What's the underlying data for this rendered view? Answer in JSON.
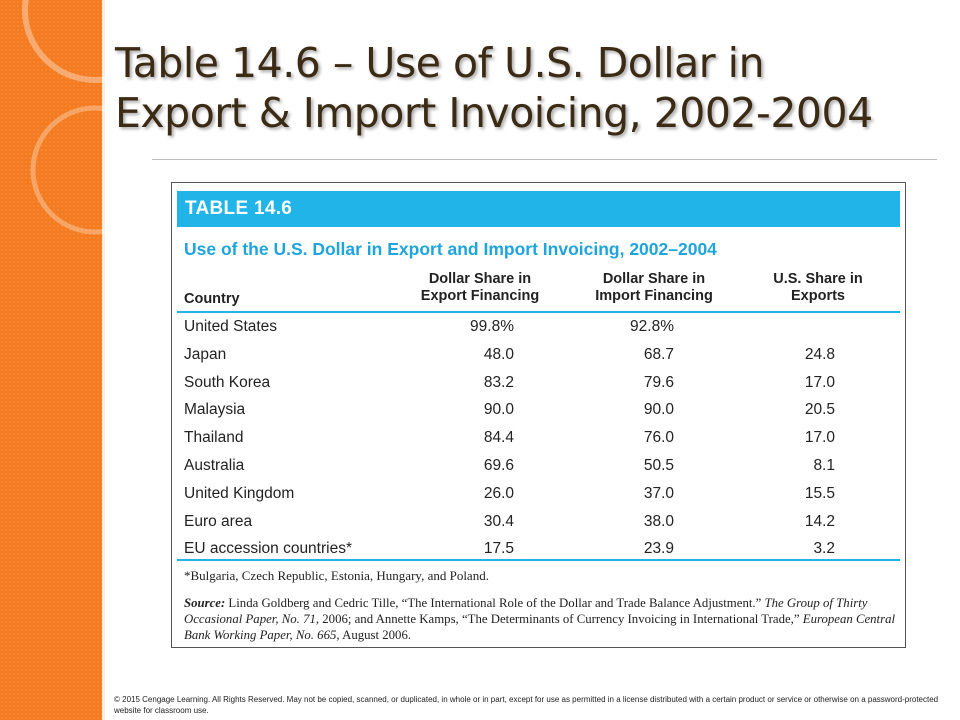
{
  "slide": {
    "title_line1": "Table 14.6 – Use of U.S. Dollar in",
    "title_line2": "Export & Import Invoicing, 2002-2004",
    "accent_color": "#f47b20",
    "copyright": "© 2015 Cengage Learning. All Rights Reserved. May not be copied, scanned, or duplicated, in whole or in part, except for use as permitted in a license distributed with a certain product or service or otherwise on a password-protected website for classroom use."
  },
  "table": {
    "label": "TABLE 14.6",
    "caption": "Use of the U.S. Dollar in Export and Import Invoicing, 2002–2004",
    "header_color": "#20b4e8",
    "columns": {
      "country": "Country",
      "export_line1": "Dollar Share in",
      "export_line2": "Export Financing",
      "import_line1": "Dollar Share in",
      "import_line2": "Import Financing",
      "us_line1": "U.S. Share in",
      "us_line2": "Exports"
    },
    "rows": [
      {
        "country": "United States",
        "export": "99.8%",
        "import": "92.8%",
        "us_share": ""
      },
      {
        "country": "Japan",
        "export": "48.0",
        "import": "68.7",
        "us_share": "24.8"
      },
      {
        "country": "South Korea",
        "export": "83.2",
        "import": "79.6",
        "us_share": "17.0"
      },
      {
        "country": "Malaysia",
        "export": "90.0",
        "import": "90.0",
        "us_share": "20.5"
      },
      {
        "country": "Thailand",
        "export": "84.4",
        "import": "76.0",
        "us_share": "17.0"
      },
      {
        "country": "Australia",
        "export": "69.6",
        "import": "50.5",
        "us_share": "8.1"
      },
      {
        "country": "United Kingdom",
        "export": "26.0",
        "import": "37.0",
        "us_share": "15.5"
      },
      {
        "country": "Euro area",
        "export": "30.4",
        "import": "38.0",
        "us_share": "14.2"
      },
      {
        "country": "EU accession countries*",
        "export": "17.5",
        "import": "23.9",
        "us_share": "3.2"
      }
    ],
    "footnote": "*Bulgaria, Czech Republic, Estonia, Hungary, and Poland.",
    "source_label": "Source:",
    "source_text1": " Linda Goldberg and Cedric Tille, “The International Role of the Dollar and Trade Balance Adjustment.” ",
    "source_italic1": "The Group of Thirty Occasional Paper, No. 71,",
    "source_text2": " 2006; and Annette Kamps, “The Determinants of Currency Invoicing in International Trade,” ",
    "source_italic2": "European Central Bank Working Paper, No. 665,",
    "source_text3": " August 2006."
  }
}
